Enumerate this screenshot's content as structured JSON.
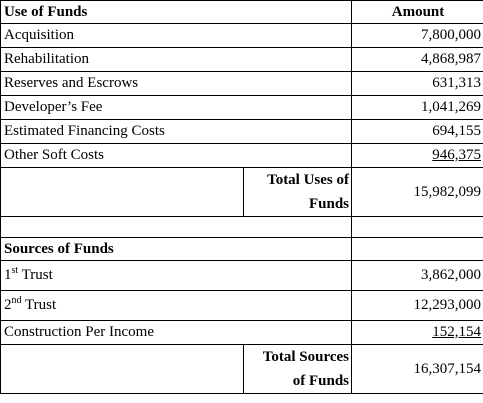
{
  "uses": {
    "header_label": "Use of Funds",
    "header_amount": "Amount",
    "items": [
      {
        "label": "Acquisition",
        "amount": "7,800,000"
      },
      {
        "label": "Rehabilitation",
        "amount": "4,868,987"
      },
      {
        "label": "Reserves and Escrows",
        "amount": "631,313"
      },
      {
        "label": "Developer’s Fee",
        "amount": "1,041,269"
      },
      {
        "label": "Estimated Financing Costs",
        "amount": "694,155"
      },
      {
        "label": "Other Soft Costs",
        "amount": "946,375"
      }
    ],
    "total_label": "Total Uses of Funds",
    "total_amount": "15,982,099"
  },
  "sources": {
    "header_label": "Sources of Funds",
    "items": [
      {
        "label_main": "1",
        "label_sup": "st",
        "label_rest": " Trust",
        "amount": "3,862,000"
      },
      {
        "label_main": "2",
        "label_sup": "nd",
        "label_rest": " Trust",
        "amount": "12,293,000"
      },
      {
        "label": "Construction Per Income",
        "amount": "152,154"
      }
    ],
    "total_label": "Total Sources of Funds",
    "total_amount": "16,307,154"
  }
}
